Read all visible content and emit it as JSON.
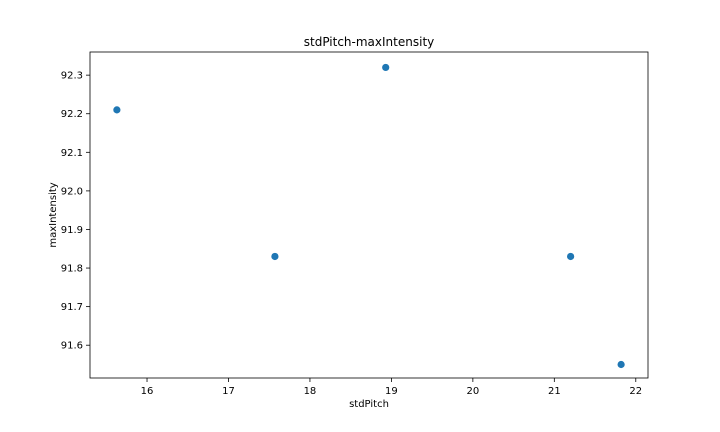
{
  "chart_data": {
    "type": "scatter",
    "title": "stdPitch-maxIntensity",
    "xlabel": "stdPitch",
    "ylabel": "maxIntensity",
    "xlim": [
      15.3,
      22.15
    ],
    "ylim": [
      91.515,
      92.36
    ],
    "xticks": [
      16,
      17,
      18,
      19,
      20,
      21,
      22
    ],
    "yticks": [
      91.6,
      91.7,
      91.8,
      91.9,
      92.0,
      92.1,
      92.2,
      92.3
    ],
    "ytick_labels": [
      "91.6",
      "91.7",
      "91.8",
      "91.9",
      "92.0",
      "92.1",
      "92.2",
      "92.3"
    ],
    "grid": false,
    "point_color": "#1f77b4",
    "series": [
      {
        "x": [
          15.63,
          17.57,
          18.93,
          21.2,
          21.82
        ],
        "y": [
          92.21,
          91.83,
          92.32,
          91.83,
          91.55
        ]
      }
    ]
  }
}
